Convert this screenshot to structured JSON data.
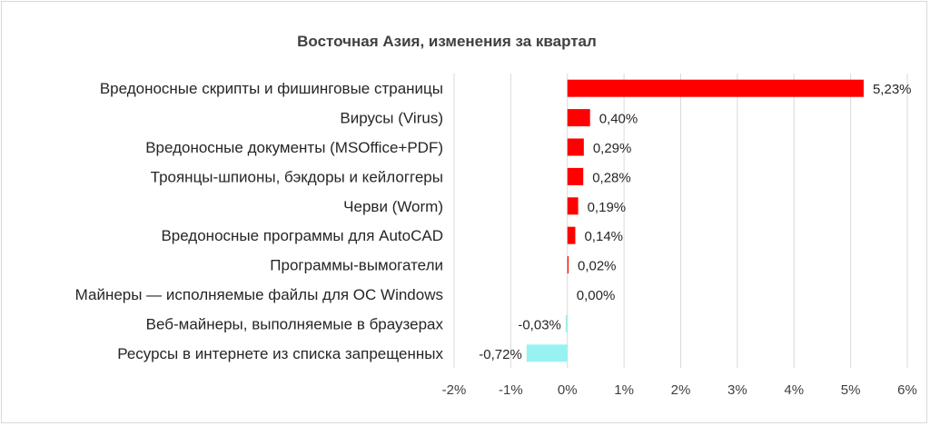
{
  "chart_data": {
    "type": "bar",
    "orientation": "horizontal",
    "title": "Восточная Азия, изменения за квартал",
    "categories": [
      "Вредоносные скрипты и фишинговые страницы",
      "Вирусы (Virus)",
      "Вредоносные документы (MSOffice+PDF)",
      "Троянцы-шпионы, бэкдоры и кейлоггеры",
      "Черви (Worm)",
      "Вредоносные программы для AutoCAD",
      "Программы-вымогатели",
      "Майнеры — исполняемые файлы для ОС Windows",
      "Веб-майнеры, выполняемые в браузерах",
      "Ресурсы в интернете из списка запрещенных"
    ],
    "values": [
      5.23,
      0.4,
      0.29,
      0.28,
      0.19,
      0.14,
      0.02,
      0.0,
      -0.03,
      -0.72
    ],
    "value_labels": [
      "5,23%",
      "0,40%",
      "0,29%",
      "0,28%",
      "0,19%",
      "0,14%",
      "0,02%",
      "0,00%",
      "-0,03%",
      "-0,72%"
    ],
    "xlim": [
      -2,
      6
    ],
    "x_ticks": [
      -2,
      -1,
      0,
      1,
      2,
      3,
      4,
      5,
      6
    ],
    "x_tick_labels": [
      "-2%",
      "-1%",
      "0%",
      "1%",
      "2%",
      "3%",
      "4%",
      "5%",
      "6%"
    ],
    "xlabel": "",
    "ylabel": "",
    "grid": "vertical",
    "legend": "none",
    "colors": {
      "positive": "#ff0000",
      "negative": "#99f2f2",
      "grid": "#d9d9d9",
      "text": "#262626"
    }
  }
}
